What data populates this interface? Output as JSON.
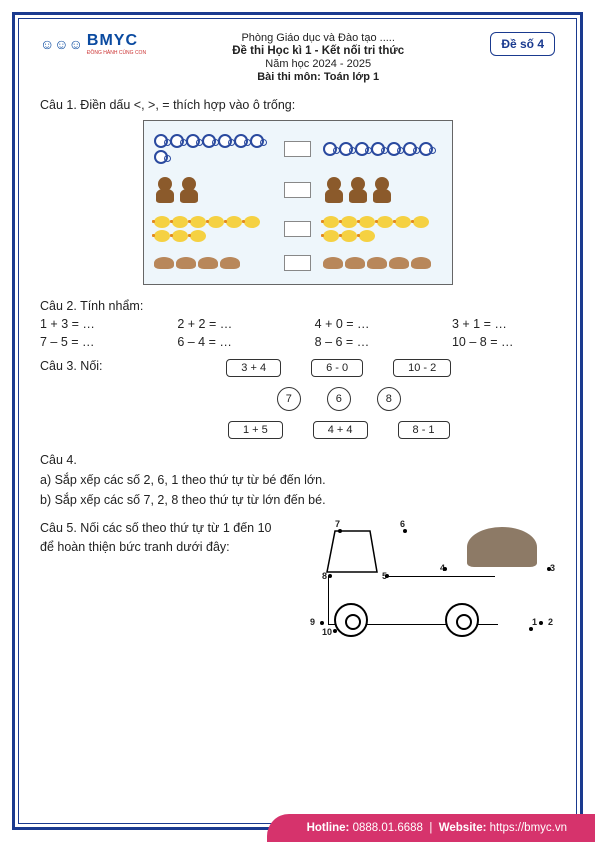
{
  "header": {
    "logo_name": "BMYC",
    "logo_tagline": "ĐỒNG HÀNH CÙNG CON",
    "line1": "Phòng Giáo dục và Đào tạo .....",
    "line2": "Đề thi Học kì 1 - Kết nối tri thức",
    "line3": "Năm học 2024 - 2025",
    "line4": "Bài thi môn: Toán lớp 1",
    "badge": "Đề số 4"
  },
  "q1": {
    "title": "Câu 1. Điền dấu <, >, = thích hợp vào ô trống:",
    "rows": [
      {
        "left_count": 8,
        "right_count": 7,
        "icon": "cup"
      },
      {
        "left_count": 2,
        "right_count": 3,
        "icon": "bear"
      },
      {
        "left_count": 9,
        "right_count": 9,
        "icon": "chick"
      },
      {
        "left_count": 4,
        "right_count": 5,
        "icon": "rock"
      }
    ]
  },
  "q2": {
    "title": "Câu 2. Tính nhẩm:",
    "row1": [
      "1 + 3 = …",
      "2 + 2 = …",
      "4 + 0 = …",
      "3 + 1 = …"
    ],
    "row2": [
      "7 – 5 = …",
      "6 – 4 = …",
      "8 – 6 = …",
      "10 – 8 = …"
    ]
  },
  "q3": {
    "title": "Câu 3. Nối:",
    "top": [
      "3 + 4",
      "6 - 0",
      "10 - 2"
    ],
    "mid": [
      "7",
      "6",
      "8"
    ],
    "bot": [
      "1 + 5",
      "4 + 4",
      "8 - 1"
    ]
  },
  "q4": {
    "title": "Câu 4.",
    "a": "a) Sắp xếp các số 2, 6, 1 theo thứ tự từ bé đến lớn.",
    "b": "b) Sắp xếp các số 7, 2, 8 theo thứ tự từ lớn đến bé."
  },
  "q5": {
    "line1": "Câu 5. Nối các số theo thứ tự từ 1 đến 10",
    "line2": "để hoàn thiện bức tranh dưới đây:",
    "dots": [
      "1",
      "2",
      "3",
      "4",
      "5",
      "6",
      "7",
      "8",
      "9",
      "10"
    ]
  },
  "footer": {
    "hotline_label": "Hotline:",
    "hotline": "0888.01.6688",
    "sep": "|",
    "web_label": "Website:",
    "web": "https://bmyc.vn"
  },
  "colors": {
    "border": "#1a3a8f",
    "accent": "#d6336c"
  }
}
